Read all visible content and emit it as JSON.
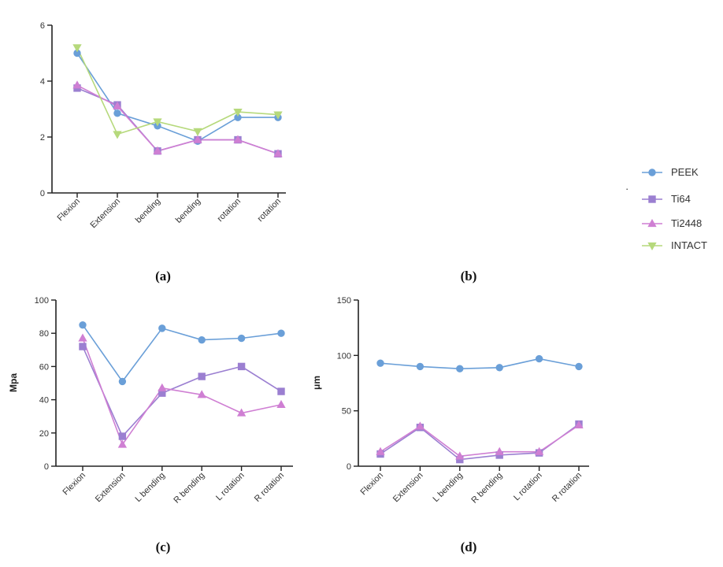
{
  "series_styles": [
    {
      "name": "PEEK",
      "color": "#6a9fd8",
      "marker": "circle"
    },
    {
      "name": "Ti64",
      "color": "#9b7fd1",
      "marker": "square"
    },
    {
      "name": "Ti2448",
      "color": "#cf7fd3",
      "marker": "triangle-up"
    },
    {
      "name": "INTACT",
      "color": "#b6d97c",
      "marker": "triangle-down"
    }
  ],
  "legend": {
    "entries": [
      "PEEK",
      "Ti64",
      "Ti2448",
      "INTACT"
    ],
    "dot_mark": "·"
  },
  "chart_data": [
    {
      "type": "line",
      "panel_label": "(a)",
      "title": "",
      "xlabel": "",
      "ylabel": "",
      "ylim": [
        0,
        6
      ],
      "yticks": [
        0,
        2,
        4,
        6
      ],
      "categories": [
        "Flexion",
        "Extension",
        "L bending",
        "R bending",
        "L rotation",
        "R rotation"
      ],
      "tick_labels": [
        "Flexion",
        "Extension",
        "bending",
        "bending",
        "rotation",
        "rotation"
      ],
      "series": [
        {
          "name": "PEEK",
          "values": [
            5.0,
            2.85,
            2.4,
            1.85,
            2.7,
            2.7
          ]
        },
        {
          "name": "Ti64",
          "values": [
            3.75,
            3.15,
            1.5,
            1.9,
            1.9,
            1.4
          ]
        },
        {
          "name": "Ti2448",
          "values": [
            3.85,
            3.1,
            1.5,
            1.9,
            1.9,
            1.4
          ]
        },
        {
          "name": "INTACT",
          "values": [
            5.2,
            2.1,
            2.55,
            2.2,
            2.9,
            2.8
          ]
        }
      ]
    },
    {
      "type": "line",
      "panel_label": "(b)",
      "title": "",
      "xlabel": "",
      "ylabel": "",
      "categories": [],
      "series": []
    },
    {
      "type": "line",
      "panel_label": "(c)",
      "title": "",
      "xlabel": "",
      "ylabel": "Mpa",
      "ylim": [
        0,
        100
      ],
      "yticks": [
        0,
        20,
        40,
        60,
        80,
        100
      ],
      "categories": [
        "Flexion",
        "Extension",
        "L bending",
        "R bending",
        "L rotation",
        "R rotation"
      ],
      "tick_labels": [
        "Flexion",
        "Extension",
        "L bending",
        "R bending",
        "L rotation",
        "R rotation"
      ],
      "series": [
        {
          "name": "PEEK",
          "values": [
            85,
            51,
            83,
            76,
            77,
            80
          ]
        },
        {
          "name": "Ti64",
          "values": [
            72,
            18,
            44,
            54,
            60,
            45
          ]
        },
        {
          "name": "Ti2448",
          "values": [
            77,
            13,
            47,
            43,
            32,
            37
          ]
        }
      ]
    },
    {
      "type": "line",
      "panel_label": "(d)",
      "title": "",
      "xlabel": "",
      "ylabel": "μm",
      "ylim": [
        0,
        150
      ],
      "yticks": [
        0,
        50,
        100,
        150
      ],
      "categories": [
        "Flexion",
        "Extension",
        "L bending",
        "R bending",
        "L rotation",
        "R rotation"
      ],
      "tick_labels": [
        "Flexion",
        "Extension",
        "L bending",
        "R bending",
        "L rotation",
        "R rotation"
      ],
      "series": [
        {
          "name": "PEEK",
          "values": [
            93,
            90,
            88,
            89,
            97,
            90
          ]
        },
        {
          "name": "Ti64",
          "values": [
            11,
            35,
            6,
            10,
            12,
            38
          ]
        },
        {
          "name": "Ti2448",
          "values": [
            13,
            36,
            9,
            13,
            13,
            37
          ]
        }
      ]
    }
  ]
}
